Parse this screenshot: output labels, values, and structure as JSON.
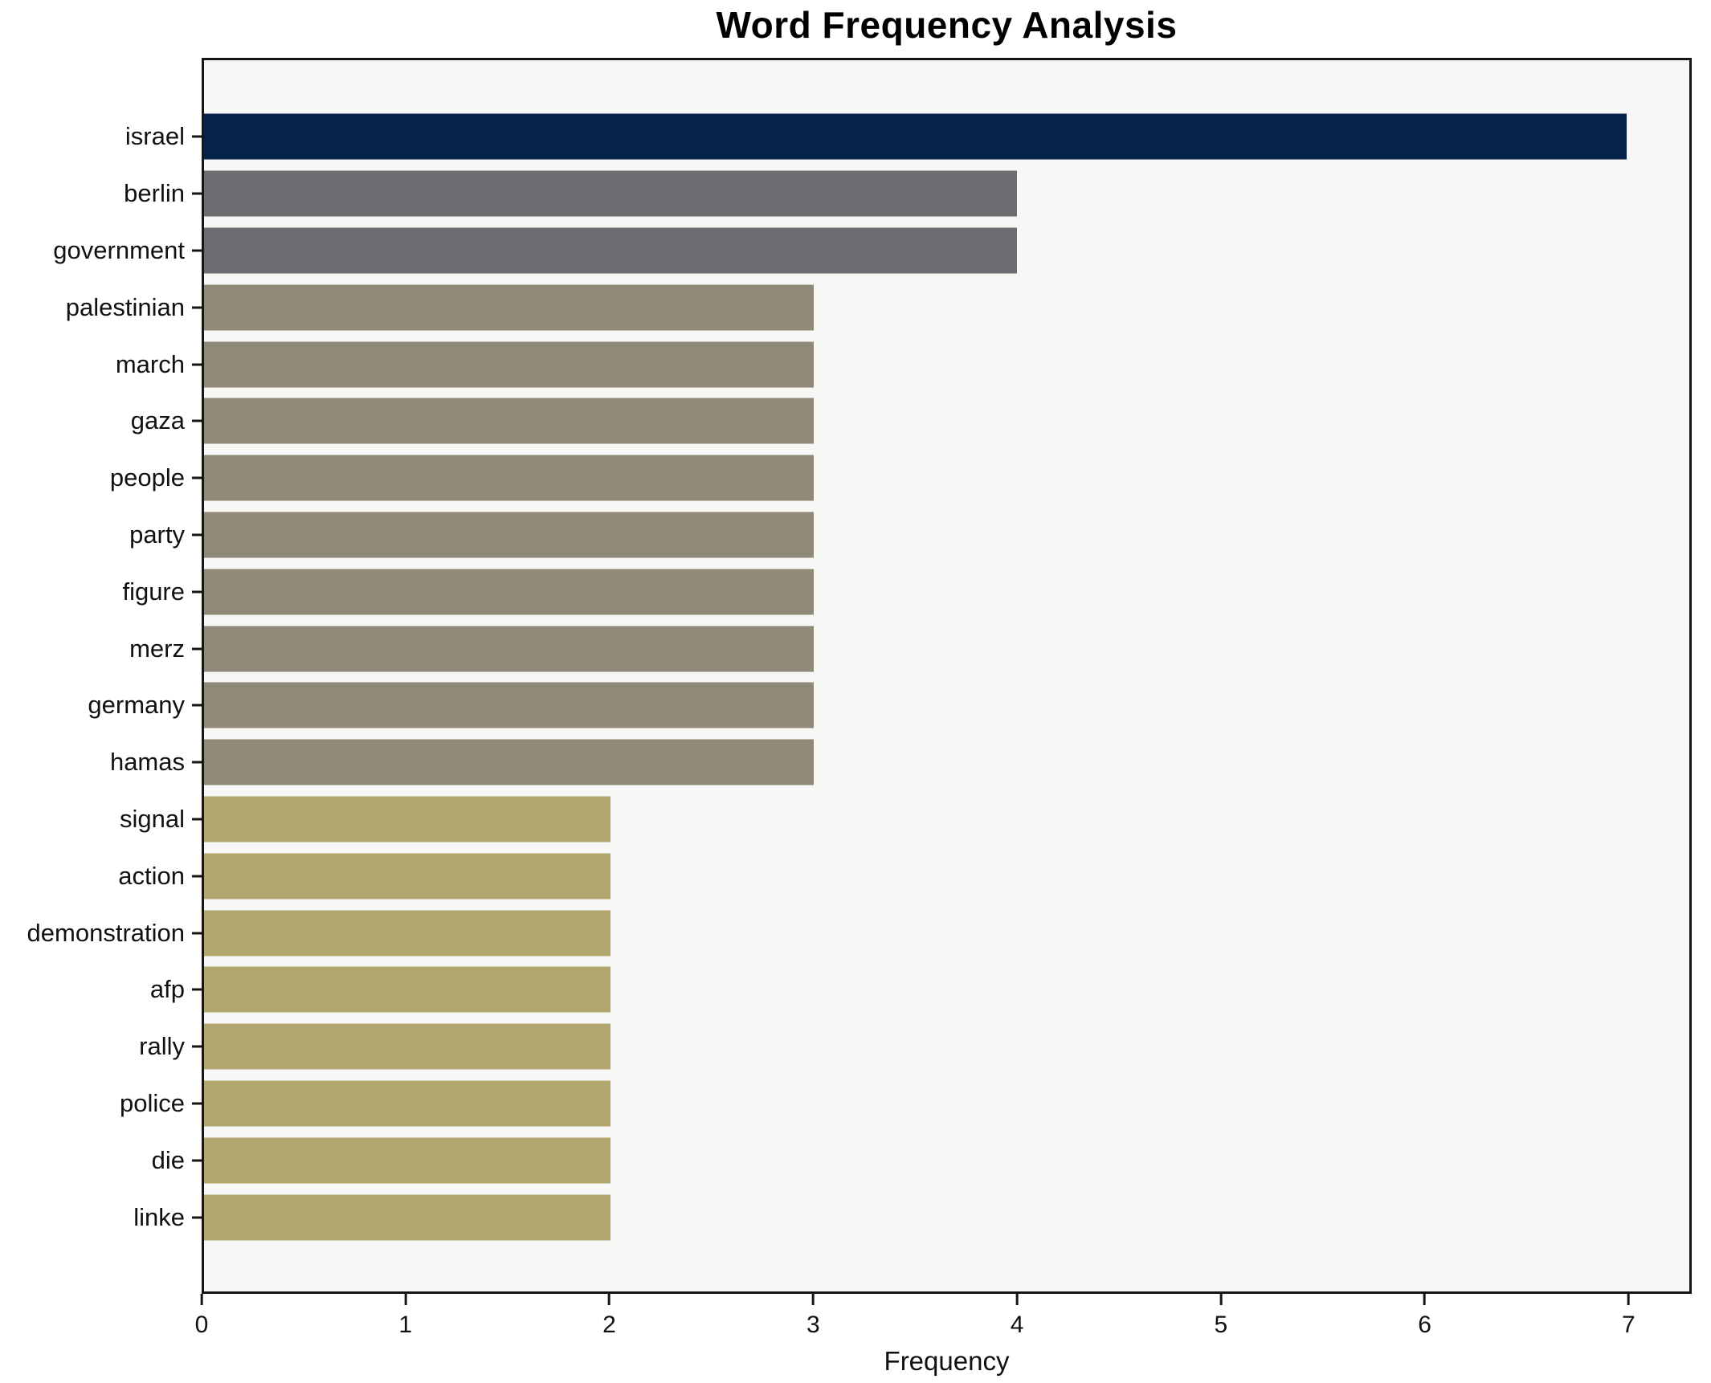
{
  "chart_data": {
    "type": "bar",
    "orientation": "horizontal",
    "title": "Word Frequency Analysis",
    "xlabel": "Frequency",
    "ylabel": "",
    "grid": false,
    "legend": null,
    "plot_background": "#f7f7f5",
    "figure_background": "#ffffff",
    "xlim": [
      0,
      7.31
    ],
    "x_ticks": [
      0,
      1,
      2,
      3,
      4,
      5,
      6,
      7
    ],
    "categories": [
      "israel",
      "berlin",
      "government",
      "palestinian",
      "march",
      "gaza",
      "people",
      "party",
      "figure",
      "merz",
      "germany",
      "hamas",
      "signal",
      "action",
      "demonstration",
      "afp",
      "rally",
      "police",
      "die",
      "linke"
    ],
    "values": [
      7,
      4,
      4,
      3,
      3,
      3,
      3,
      3,
      3,
      3,
      3,
      3,
      2,
      2,
      2,
      2,
      2,
      2,
      2,
      2
    ],
    "bar_colors": [
      "#07224a",
      "#6c6d70",
      "#6c6d70",
      "#8f8978",
      "#8f8978",
      "#8f8978",
      "#8f8978",
      "#8f8978",
      "#8f8978",
      "#8f8978",
      "#8f8978",
      "#8f8978",
      "#b2a76e",
      "#b2a76e",
      "#b2a76e",
      "#b2a76e",
      "#b2a76e",
      "#b2a76e",
      "#b2a76e",
      "#b2a76e"
    ],
    "palette": {
      "freq_7": "#07224a",
      "freq_4": "#6c6d70",
      "freq_3": "#8f8978",
      "freq_2": "#b2a76e"
    }
  }
}
